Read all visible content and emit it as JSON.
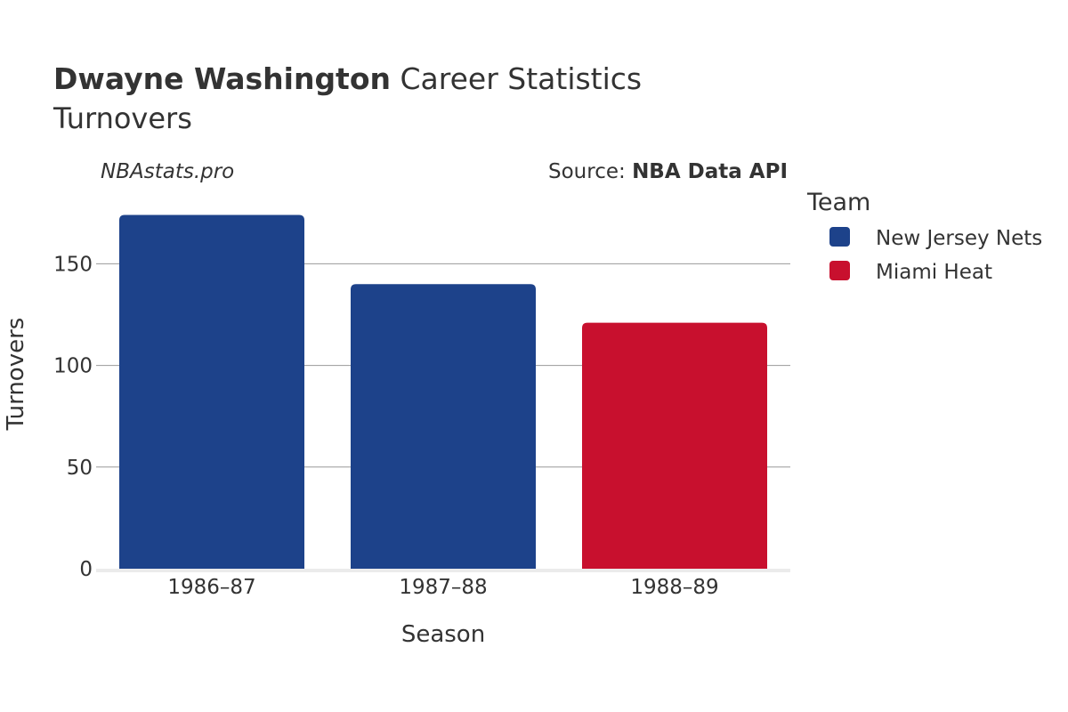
{
  "header": {
    "title_bold": "Dwayne Washington",
    "title_rest": " Career Statistics",
    "subtitle": "Turnovers"
  },
  "branding": {
    "site": "NBAstats.pro",
    "source_prefix": "Source: ",
    "source_name": "NBA Data API"
  },
  "legend": {
    "title": "Team",
    "items": [
      {
        "label": "New Jersey Nets",
        "color": "#1d428a"
      },
      {
        "label": "Miami Heat",
        "color": "#c8102e"
      }
    ]
  },
  "chart_data": {
    "type": "bar",
    "xlabel": "Season",
    "ylabel": "Turnovers",
    "categories": [
      "1986–87",
      "1987–88",
      "1988–89"
    ],
    "values": [
      174,
      140,
      121
    ],
    "teams": [
      "New Jersey Nets",
      "New Jersey Nets",
      "Miami Heat"
    ],
    "ylim": [
      0,
      183
    ],
    "yticks": [
      0,
      50,
      100,
      150
    ],
    "grid": true,
    "legend_position": "right"
  }
}
